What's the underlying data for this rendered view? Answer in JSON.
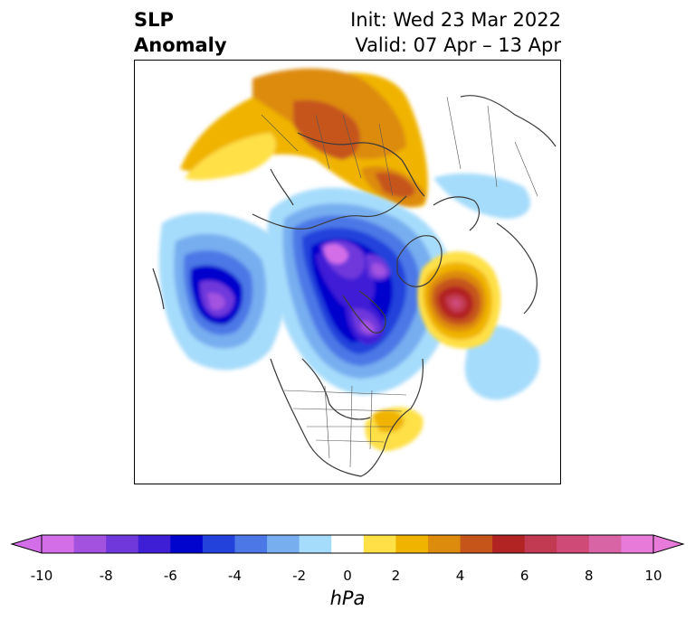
{
  "title": {
    "left_line1": "SLP",
    "left_line2": "Anomaly",
    "right_line1": "Init: Wed 23 Mar 2022",
    "right_line2": "Valid: 07 Apr – 13 Apr"
  },
  "colorbar": {
    "units": "hPa",
    "tick_labels": [
      "-10",
      "-8",
      "-6",
      "-4",
      "-2",
      "0",
      "2",
      "4",
      "6",
      "8",
      "10"
    ],
    "levels": [
      -10,
      -9,
      -8,
      -7,
      -6,
      -5,
      -4,
      -3,
      -2,
      -1,
      1,
      2,
      3,
      4,
      5,
      6,
      7,
      8,
      9,
      10
    ],
    "colors": [
      "#d46ee8",
      "#a352e0",
      "#7038db",
      "#3f1fd6",
      "#0004cc",
      "#2242db",
      "#4b78e6",
      "#77aef0",
      "#a6dcfb",
      "#ffffff",
      "#ffe046",
      "#f0b400",
      "#dd8b0c",
      "#c6551a",
      "#b22424",
      "#c23a52",
      "#d04a78",
      "#d864a6",
      "#e87ad9"
    ],
    "extend": "both",
    "under_color": "#d46ee8",
    "over_color": "#e87ad9"
  }
}
